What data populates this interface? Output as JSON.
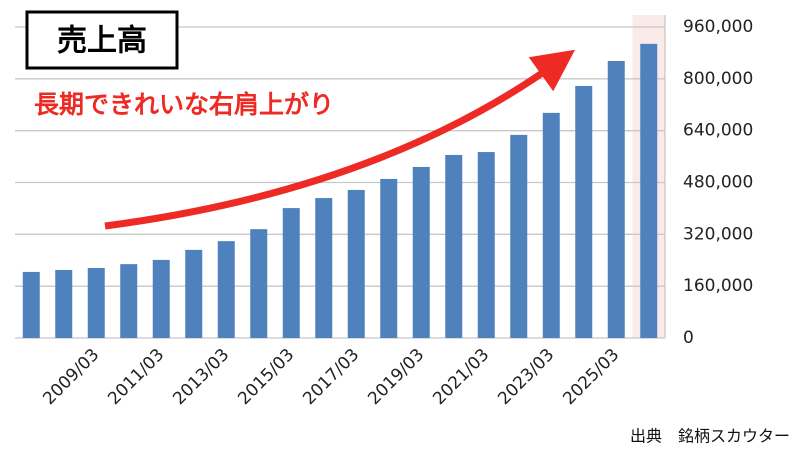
{
  "chart_data": {
    "type": "bar",
    "title": "売上高",
    "annotation": "長期できれいな右肩上がり",
    "source": "出典　銘柄スカウター",
    "categories": [
      null,
      null,
      "2009/03",
      null,
      "2011/03",
      null,
      "2013/03",
      null,
      "2015/03",
      null,
      "2017/03",
      null,
      "2019/03",
      null,
      "2021/03",
      null,
      "2023/03",
      null,
      "2025/03",
      null
    ],
    "values": [
      204000,
      210000,
      216000,
      228000,
      241000,
      272000,
      299000,
      336000,
      401000,
      432000,
      457000,
      491000,
      528000,
      565000,
      574000,
      627000,
      695000,
      778000,
      855000,
      908000
    ],
    "color": "#4f81bd",
    "last_band_color": "#fbeaea",
    "ylim": [
      0,
      960000
    ],
    "yticks": [
      0,
      {
        "value": 160000,
        "label": "160,000"
      },
      {
        "value": 320000,
        "label": "320,000"
      },
      {
        "value": 480000,
        "label": "480,000"
      },
      {
        "value": 640000,
        "label": "640,000"
      },
      {
        "value": 800000,
        "label": "800,000"
      },
      {
        "value": 960000,
        "label": "960,000"
      }
    ],
    "grid": true
  }
}
